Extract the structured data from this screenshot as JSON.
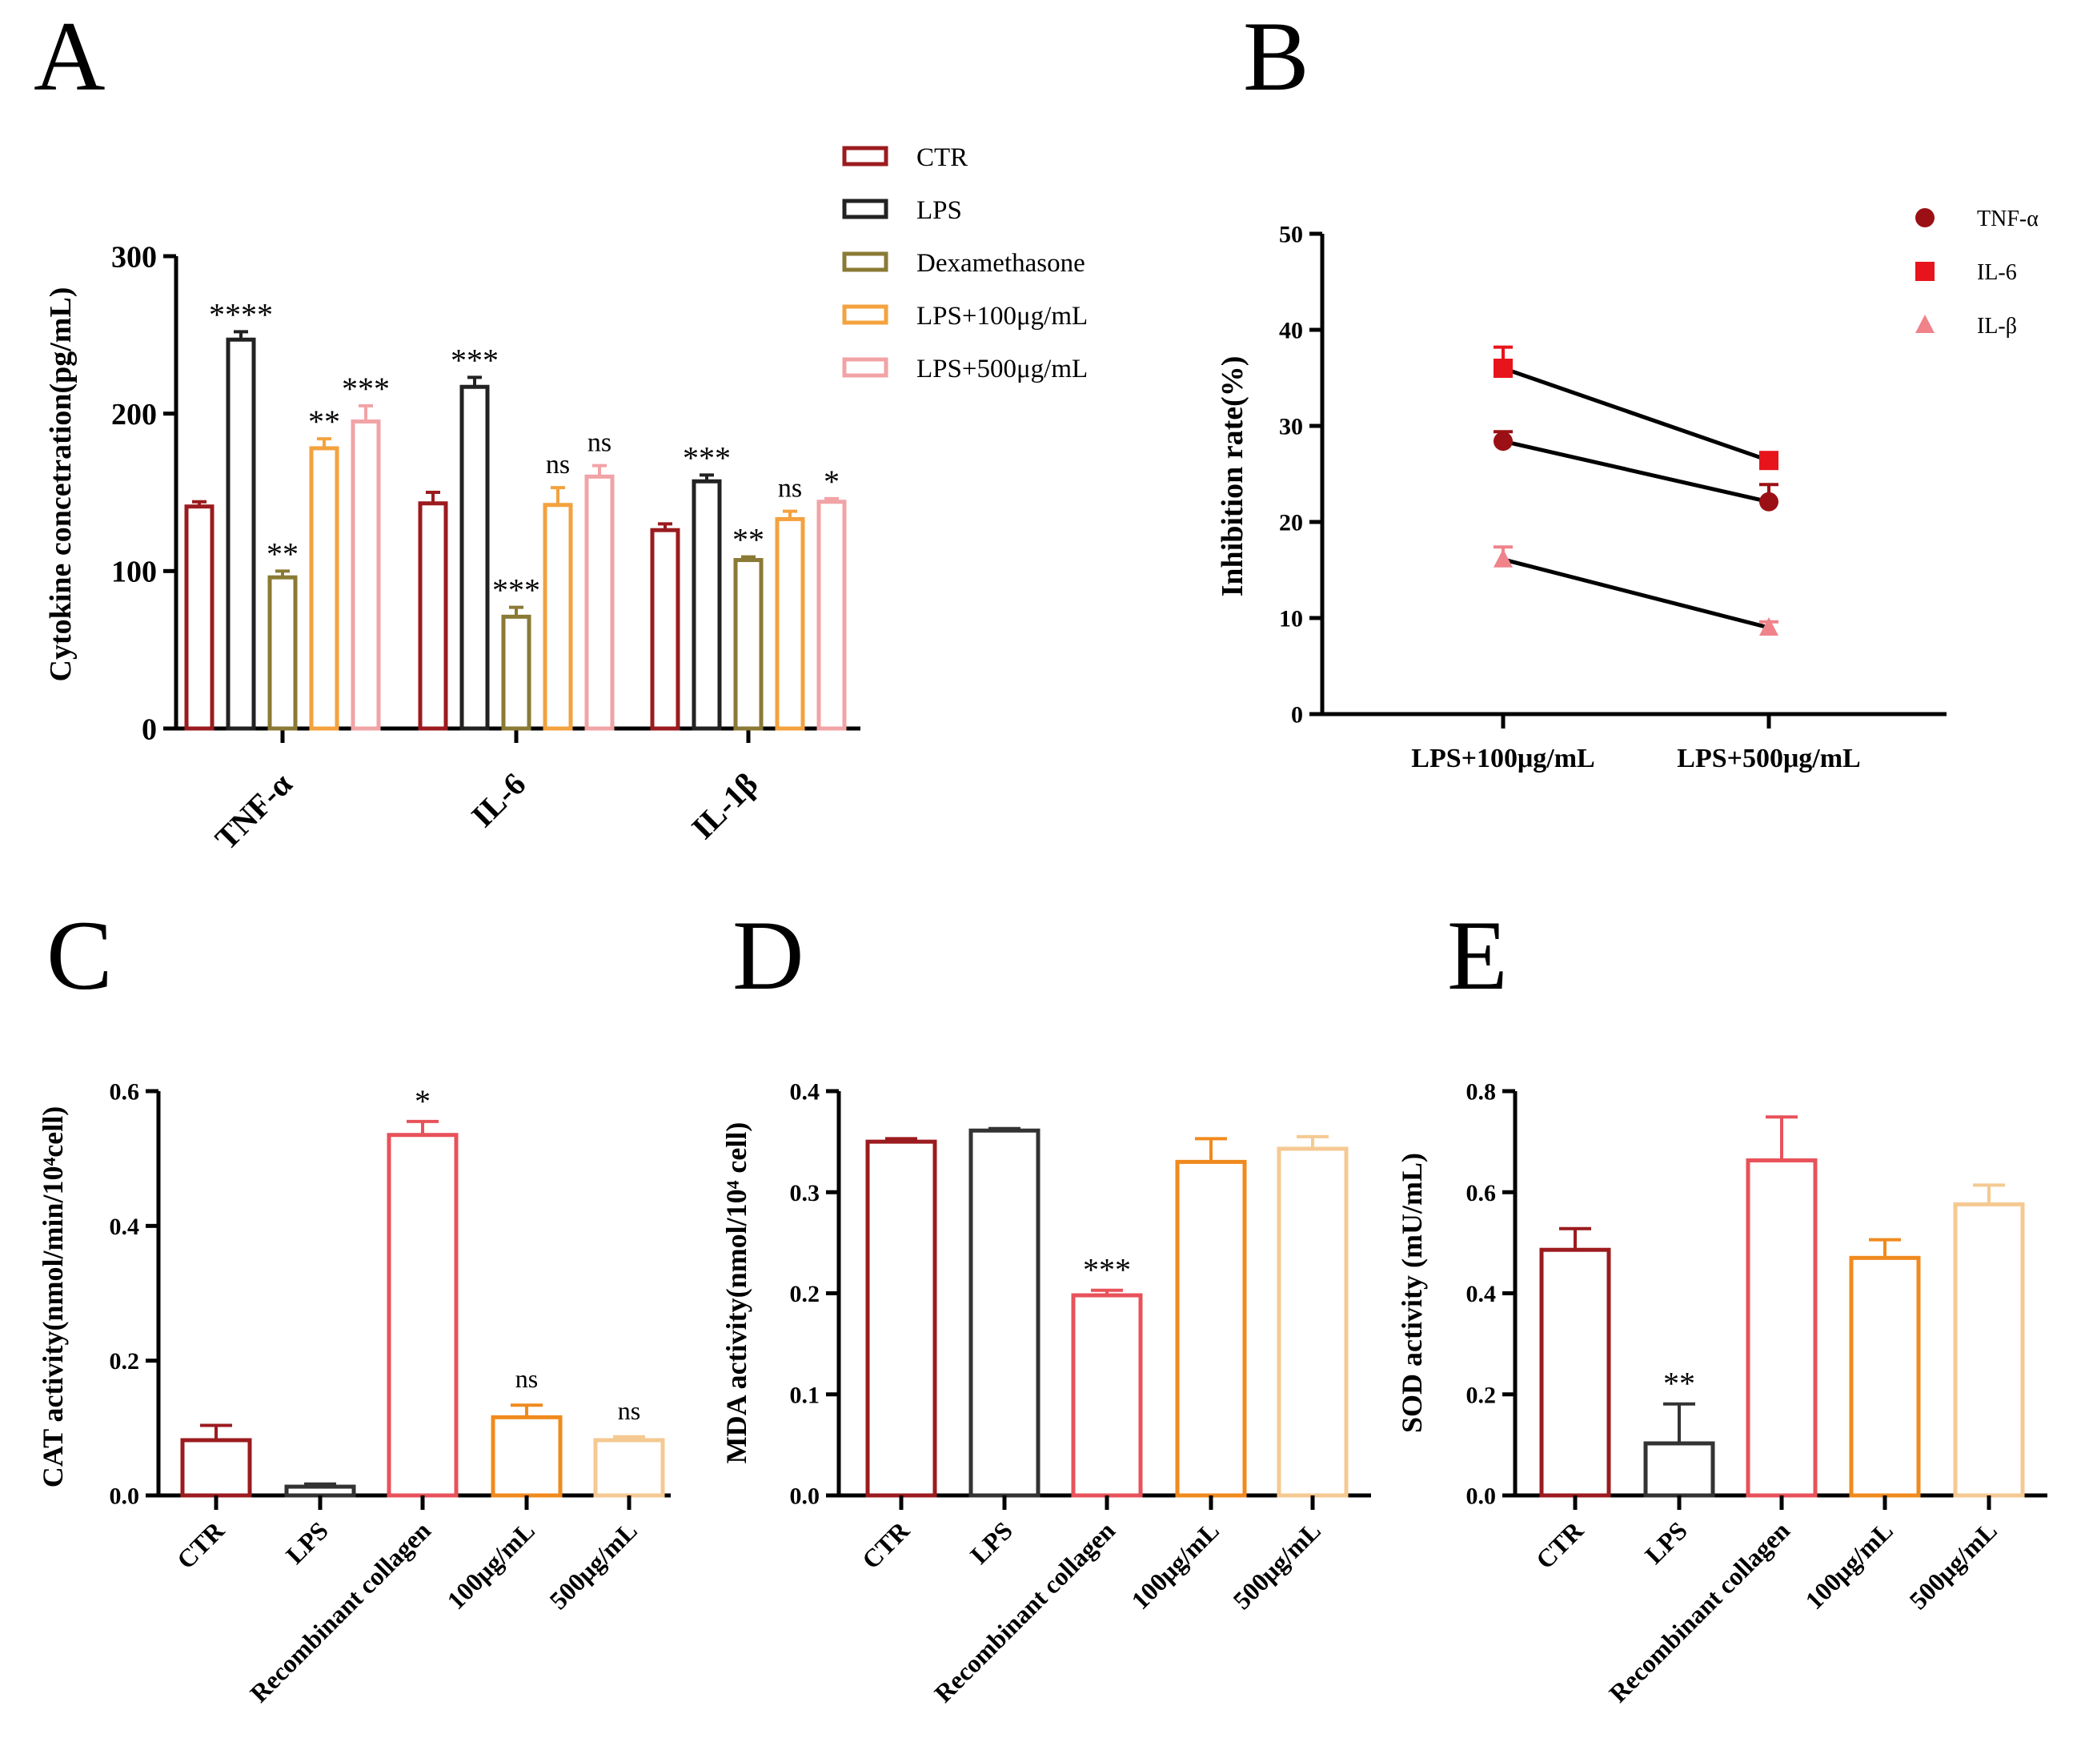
{
  "panels": {
    "A": "A",
    "B": "B",
    "C": "C",
    "D": "D",
    "E": "E"
  },
  "chart_data": [
    {
      "id": "A",
      "type": "bar",
      "title": "",
      "xlabel": "",
      "ylabel": "Cytokine concetration(pg/mL)",
      "ylim": [
        0,
        300
      ],
      "yticks": [
        "0",
        "100",
        "200",
        "300"
      ],
      "categories": [
        "TNF-α",
        "IL-6",
        "IL-1β"
      ],
      "legend_position": "top-right",
      "series": [
        {
          "name": "CTR",
          "color": "#9B1B1F",
          "values": [
            141,
            143,
            126
          ],
          "errors": [
            3,
            7,
            4
          ],
          "annotations": [
            "",
            "",
            ""
          ]
        },
        {
          "name": "LPS",
          "color": "#222222",
          "values": [
            247,
            217,
            157
          ],
          "errors": [
            5,
            6,
            4
          ],
          "annotations": [
            "****",
            "***",
            "***"
          ]
        },
        {
          "name": "Dexamethasone",
          "color": "#8A7A35",
          "values": [
            96,
            71,
            107
          ],
          "errors": [
            4,
            6,
            2
          ],
          "annotations": [
            "**",
            "***",
            "**"
          ]
        },
        {
          "name": "LPS+100μg/mL",
          "color": "#F3A23E",
          "values": [
            178,
            142,
            133
          ],
          "errors": [
            6,
            11,
            5
          ],
          "annotations": [
            "**",
            "ns",
            "ns"
          ]
        },
        {
          "name": "LPS+500μg/mL",
          "color": "#F1A3A6",
          "values": [
            195,
            160,
            144
          ],
          "errors": [
            10,
            7,
            2
          ],
          "annotations": [
            "***",
            "ns",
            "*"
          ]
        }
      ]
    },
    {
      "id": "B",
      "type": "line",
      "title": "",
      "xlabel": "",
      "ylabel": "Inhibition rate(%)",
      "ylim": [
        0,
        50
      ],
      "yticks": [
        "0",
        "10",
        "20",
        "30",
        "40",
        "50"
      ],
      "categories": [
        "LPS+100μg/mL",
        "LPS+500μg/mL"
      ],
      "legend_position": "top-right",
      "series": [
        {
          "name": "TNF-α",
          "marker": "circle",
          "color": "#9B1014",
          "values": [
            28.4,
            22.1
          ],
          "errors": [
            1.0,
            1.8
          ]
        },
        {
          "name": "IL-6",
          "marker": "square",
          "color": "#E8141C",
          "values": [
            36.0,
            26.4
          ],
          "errors": [
            2.2,
            0.5
          ]
        },
        {
          "name": "IL-β",
          "marker": "triangle",
          "color": "#F0828A",
          "values": [
            16.1,
            9.0
          ],
          "errors": [
            1.3,
            0.6
          ]
        }
      ]
    },
    {
      "id": "C",
      "type": "bar",
      "title": "",
      "xlabel": "",
      "ylabel": "CAT activity(nmol/min/10⁴cell)",
      "ylim": [
        0,
        0.6
      ],
      "yticks": [
        "0.0",
        "0.2",
        "0.4",
        "0.6"
      ],
      "categories": [
        "CTR",
        "LPS",
        "Recombinant collagen",
        "100μg/mL",
        "500μg/mL"
      ],
      "colors": [
        "#9B1B1F",
        "#333333",
        "#E8525A",
        "#F08A1E",
        "#F5C992"
      ],
      "values": [
        0.082,
        0.013,
        0.535,
        0.116,
        0.082
      ],
      "errors": [
        0.022,
        0.004,
        0.02,
        0.018,
        0.005
      ],
      "annotations": [
        "",
        "",
        "*",
        "ns",
        "ns"
      ]
    },
    {
      "id": "D",
      "type": "bar",
      "title": "",
      "xlabel": "",
      "ylabel": "MDA activity(nmol/10⁴ cell)",
      "ylim": [
        0,
        0.4
      ],
      "yticks": [
        "0.0",
        "0.1",
        "0.2",
        "0.3",
        "0.4"
      ],
      "categories": [
        "CTR",
        "LPS",
        "Recombinant collagen",
        "100μg/mL",
        "500μg/mL"
      ],
      "colors": [
        "#9B1B1F",
        "#333333",
        "#E8525A",
        "#F08A1E",
        "#F5C992"
      ],
      "values": [
        0.35,
        0.361,
        0.198,
        0.33,
        0.343
      ],
      "errors": [
        0.003,
        0.002,
        0.005,
        0.023,
        0.012
      ],
      "annotations": [
        "",
        "",
        "***",
        "",
        ""
      ]
    },
    {
      "id": "E",
      "type": "bar",
      "title": "",
      "xlabel": "",
      "ylabel": "SOD activity (mU/mL)",
      "ylim": [
        0,
        0.8
      ],
      "yticks": [
        "0.0",
        "0.2",
        "0.4",
        "0.6",
        "0.8"
      ],
      "categories": [
        "CTR",
        "LPS",
        "Recombinant collagen",
        "100μg/mL",
        "500μg/mL"
      ],
      "colors": [
        "#9B1B1F",
        "#333333",
        "#E8525A",
        "#F08A1E",
        "#F5C992"
      ],
      "values": [
        0.486,
        0.103,
        0.663,
        0.47,
        0.576
      ],
      "errors": [
        0.042,
        0.078,
        0.086,
        0.036,
        0.038
      ],
      "annotations": [
        "",
        "**",
        "",
        "",
        ""
      ]
    }
  ]
}
